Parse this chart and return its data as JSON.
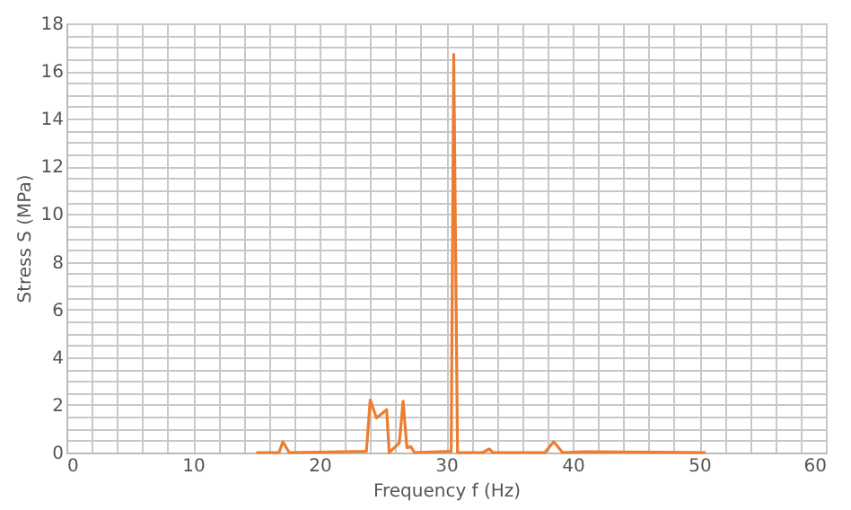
{
  "chart_data": {
    "type": "line",
    "xlabel": "Frequency f (Hz)",
    "ylabel": "Stress S (MPa)",
    "series": [
      {
        "color": "#ed7d31",
        "x": [
          15,
          16.8,
          17.1,
          17.6,
          21,
          23.7,
          24,
          24.5,
          25.3,
          25.5,
          26.3,
          26.6,
          26.9,
          27.2,
          27.5,
          30.4,
          30.6,
          30.9,
          31.1,
          32.9,
          33.4,
          33.7,
          37.8,
          38.5,
          39.2,
          41,
          50.5
        ],
        "values": [
          0,
          0,
          0.45,
          0,
          0.02,
          0.05,
          2.2,
          1.45,
          1.8,
          0,
          0.4,
          2.15,
          0.2,
          0.25,
          0,
          0.05,
          16.7,
          0,
          0,
          0,
          0.15,
          0,
          0,
          0.45,
          0,
          0.03,
          0
        ]
      }
    ],
    "xlim": [
      0,
      60
    ],
    "ylim": [
      0,
      18
    ],
    "xticks": [
      0,
      {
        "value": 2,
        "label": null
      },
      {
        "value": 4,
        "label": null
      },
      {
        "value": 6,
        "label": null
      },
      {
        "value": 8,
        "label": null
      },
      10,
      {
        "value": 12,
        "label": null
      },
      {
        "value": 14,
        "label": null
      },
      {
        "value": 16,
        "label": null
      },
      {
        "value": 18,
        "label": null
      },
      20,
      {
        "value": 22,
        "label": null
      },
      {
        "value": 24,
        "label": null
      },
      {
        "value": 26,
        "label": null
      },
      {
        "value": 28,
        "label": null
      },
      30,
      {
        "value": 32,
        "label": null
      },
      {
        "value": 34,
        "label": null
      },
      {
        "value": 36,
        "label": null
      },
      {
        "value": 38,
        "label": null
      },
      40,
      {
        "value": 42,
        "label": null
      },
      {
        "value": 44,
        "label": null
      },
      {
        "value": 46,
        "label": null
      },
      {
        "value": 48,
        "label": null
      },
      50,
      {
        "value": 52,
        "label": null
      },
      {
        "value": 54,
        "label": null
      },
      {
        "value": 56,
        "label": null
      },
      {
        "value": 58,
        "label": null
      },
      60
    ],
    "yticks": [
      0,
      {
        "value": 0.5,
        "label": null
      },
      {
        "value": 1,
        "label": null
      },
      {
        "value": 1.5,
        "label": null
      },
      2,
      {
        "value": 2.5,
        "label": null
      },
      {
        "value": 3,
        "label": null
      },
      {
        "value": 3.5,
        "label": null
      },
      4,
      {
        "value": 4.5,
        "label": null
      },
      {
        "value": 5,
        "label": null
      },
      {
        "value": 5.5,
        "label": null
      },
      6,
      {
        "value": 6.5,
        "label": null
      },
      {
        "value": 7,
        "label": null
      },
      {
        "value": 7.5,
        "label": null
      },
      8,
      {
        "value": 8.5,
        "label": null
      },
      {
        "value": 9,
        "label": null
      },
      {
        "value": 9.5,
        "label": null
      },
      10,
      {
        "value": 10.5,
        "label": null
      },
      {
        "value": 11,
        "label": null
      },
      {
        "value": 11.5,
        "label": null
      },
      12,
      {
        "value": 12.5,
        "label": null
      },
      {
        "value": 13,
        "label": null
      },
      {
        "value": 13.5,
        "label": null
      },
      14,
      {
        "value": 14.5,
        "label": null
      },
      {
        "value": 15,
        "label": null
      },
      {
        "value": 15.5,
        "label": null
      },
      16,
      {
        "value": 16.5,
        "label": null
      },
      {
        "value": 17,
        "label": null
      },
      {
        "value": 17.5,
        "label": null
      },
      18
    ],
    "grid": true,
    "marker": "none",
    "line_style": "solid"
  }
}
